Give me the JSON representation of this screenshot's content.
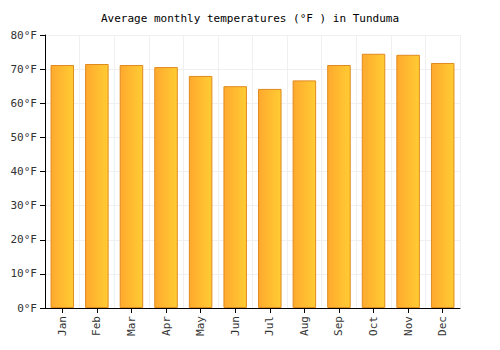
{
  "chart_data": {
    "type": "bar",
    "title": "Average monthly temperatures (°F ) in Tunduma",
    "categories": [
      "Jan",
      "Feb",
      "Mar",
      "Apr",
      "May",
      "Jun",
      "Jul",
      "Aug",
      "Sep",
      "Oct",
      "Nov",
      "Dec"
    ],
    "values": [
      71.2,
      71.5,
      71.2,
      70.6,
      68.0,
      65.0,
      64.2,
      66.7,
      71.2,
      74.5,
      74.2,
      71.8
    ],
    "color": "#ffa92e",
    "ylim": [
      0,
      80
    ],
    "yticks": [
      {
        "value": 0,
        "label": "0°F"
      },
      {
        "value": 10,
        "label": "10°F"
      },
      {
        "value": 20,
        "label": "20°F"
      },
      {
        "value": 30,
        "label": "30°F"
      },
      {
        "value": 40,
        "label": "40°F"
      },
      {
        "value": 50,
        "label": "50°F"
      },
      {
        "value": 60,
        "label": "60°F"
      },
      {
        "value": 70,
        "label": "70°F"
      },
      {
        "value": 80,
        "label": "80°F"
      }
    ],
    "grid": true
  }
}
